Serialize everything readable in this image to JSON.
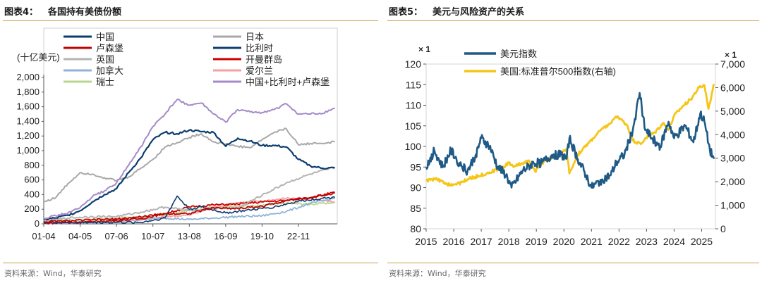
{
  "left": {
    "fig_num": "图表4：",
    "fig_title": "各国持有美债份额",
    "source": "资料来源：Wind，华泰研究"
  },
  "right": {
    "fig_num": "图表5：",
    "fig_title": "美元与风险资产的关系",
    "source": "资料来源：Wind，华泰研究"
  },
  "colors": {
    "rule": "#c9a24a",
    "china": "#0b3c6e",
    "japan": "#a8a8a8",
    "luxembourg": "#c00000",
    "belgium": "#0b3c6e",
    "uk": "#b4b4b4",
    "cayman": "#cc0000",
    "canada": "#8fb3d9",
    "ireland": "#f2a2a2",
    "switzerland": "#b8d58c",
    "combined": "#a48ac8",
    "dxy": "#1f5a86",
    "sp500": "#f5c518"
  },
  "chart_data": [
    {
      "type": "line",
      "title": "各国持有美债份额",
      "ylabel": "(十亿美元)",
      "ylim": [
        0,
        2000
      ],
      "yticks": [
        "0",
        "200",
        "400",
        "600",
        "800",
        "1,000",
        "1,200",
        "1,400",
        "1,600",
        "1,800",
        "2,000"
      ],
      "xticks": [
        "01-04",
        "04-05",
        "07-06",
        "10-07",
        "13-08",
        "16-09",
        "19-10",
        "22-11"
      ],
      "legend": "top-left, two columns",
      "series": [
        {
          "name": "中国",
          "key": "china",
          "values": [
            [
              2001,
              60
            ],
            [
              2002,
              80
            ],
            [
              2003,
              120
            ],
            [
              2004,
              180
            ],
            [
              2005,
              300
            ],
            [
              2006,
              400
            ],
            [
              2007,
              480
            ],
            [
              2008,
              700
            ],
            [
              2009,
              900
            ],
            [
              2010,
              1150
            ],
            [
              2011,
              1250
            ],
            [
              2012,
              1230
            ],
            [
              2013,
              1280
            ],
            [
              2014,
              1260
            ],
            [
              2015,
              1250
            ],
            [
              2016,
              1060
            ],
            [
              2017,
              1170
            ],
            [
              2018,
              1130
            ],
            [
              2019,
              1070
            ],
            [
              2020,
              1070
            ],
            [
              2021,
              1050
            ],
            [
              2022,
              880
            ],
            [
              2023,
              790
            ],
            [
              2024,
              760
            ],
            [
              2025,
              765
            ]
          ]
        },
        {
          "name": "日本",
          "key": "japan",
          "values": [
            [
              2001,
              300
            ],
            [
              2002,
              360
            ],
            [
              2003,
              550
            ],
            [
              2004,
              700
            ],
            [
              2005,
              680
            ],
            [
              2006,
              630
            ],
            [
              2007,
              590
            ],
            [
              2008,
              640
            ],
            [
              2009,
              760
            ],
            [
              2010,
              880
            ],
            [
              2011,
              1050
            ],
            [
              2012,
              1110
            ],
            [
              2013,
              1180
            ],
            [
              2014,
              1230
            ],
            [
              2015,
              1120
            ],
            [
              2016,
              1090
            ],
            [
              2017,
              1060
            ],
            [
              2018,
              1040
            ],
            [
              2019,
              1150
            ],
            [
              2020,
              1250
            ],
            [
              2021,
              1300
            ],
            [
              2022,
              1080
            ],
            [
              2023,
              1100
            ],
            [
              2024,
              1100
            ],
            [
              2025,
              1120
            ]
          ]
        },
        {
          "name": "卢森堡",
          "key": "luxembourg",
          "values": [
            [
              2001,
              30
            ],
            [
              2003,
              40
            ],
            [
              2005,
              55
            ],
            [
              2007,
              65
            ],
            [
              2009,
              95
            ],
            [
              2011,
              140
            ],
            [
              2013,
              140
            ],
            [
              2015,
              220
            ],
            [
              2017,
              210
            ],
            [
              2019,
              240
            ],
            [
              2021,
              320
            ],
            [
              2023,
              360
            ],
            [
              2025,
              420
            ]
          ]
        },
        {
          "name": "比利时",
          "key": "belgium",
          "values": [
            [
              2001,
              20
            ],
            [
              2003,
              20
            ],
            [
              2005,
              20
            ],
            [
              2007,
              20
            ],
            [
              2009,
              20
            ],
            [
              2011,
              80
            ],
            [
              2012,
              380
            ],
            [
              2013,
              200
            ],
            [
              2014,
              230
            ],
            [
              2016,
              150
            ],
            [
              2018,
              190
            ],
            [
              2020,
              230
            ],
            [
              2022,
              310
            ],
            [
              2024,
              350
            ],
            [
              2025,
              360
            ]
          ]
        },
        {
          "name": "英国",
          "key": "uk",
          "values": [
            [
              2001,
              40
            ],
            [
              2003,
              80
            ],
            [
              2005,
              100
            ],
            [
              2007,
              100
            ],
            [
              2009,
              160
            ],
            [
              2011,
              230
            ],
            [
              2013,
              180
            ],
            [
              2015,
              210
            ],
            [
              2017,
              220
            ],
            [
              2019,
              390
            ],
            [
              2021,
              560
            ],
            [
              2023,
              680
            ],
            [
              2025,
              770
            ]
          ]
        },
        {
          "name": "开曼群岛",
          "key": "cayman",
          "values": [
            [
              2001,
              10
            ],
            [
              2005,
              25
            ],
            [
              2009,
              70
            ],
            [
              2011,
              140
            ],
            [
              2013,
              230
            ],
            [
              2015,
              260
            ],
            [
              2017,
              270
            ],
            [
              2019,
              300
            ],
            [
              2021,
              320
            ],
            [
              2023,
              360
            ],
            [
              2025,
              430
            ]
          ]
        },
        {
          "name": "加拿大",
          "key": "canada",
          "values": [
            [
              2001,
              10
            ],
            [
              2005,
              20
            ],
            [
              2009,
              60
            ],
            [
              2011,
              80
            ],
            [
              2013,
              60
            ],
            [
              2015,
              80
            ],
            [
              2017,
              100
            ],
            [
              2019,
              110
            ],
            [
              2021,
              170
            ],
            [
              2023,
              280
            ],
            [
              2025,
              350
            ]
          ]
        },
        {
          "name": "爱尔兰",
          "key": "ireland",
          "values": [
            [
              2001,
              10
            ],
            [
              2005,
              30
            ],
            [
              2009,
              50
            ],
            [
              2011,
              100
            ],
            [
              2013,
              120
            ],
            [
              2015,
              230
            ],
            [
              2017,
              290
            ],
            [
              2019,
              310
            ],
            [
              2021,
              350
            ],
            [
              2023,
              340
            ],
            [
              2025,
              300
            ]
          ]
        },
        {
          "name": "瑞士",
          "key": "switzerland",
          "values": [
            [
              2001,
              40
            ],
            [
              2005,
              60
            ],
            [
              2009,
              90
            ],
            [
              2011,
              120
            ],
            [
              2013,
              180
            ],
            [
              2015,
              230
            ],
            [
              2017,
              240
            ],
            [
              2019,
              250
            ],
            [
              2021,
              280
            ],
            [
              2023,
              270
            ],
            [
              2025,
              290
            ]
          ]
        },
        {
          "name": "中国+比利时+卢森堡",
          "key": "combined",
          "values": [
            [
              2001,
              80
            ],
            [
              2002,
              110
            ],
            [
              2003,
              150
            ],
            [
              2004,
              220
            ],
            [
              2005,
              370
            ],
            [
              2006,
              450
            ],
            [
              2007,
              560
            ],
            [
              2008,
              800
            ],
            [
              2009,
              1050
            ],
            [
              2010,
              1330
            ],
            [
              2011,
              1500
            ],
            [
              2012,
              1700
            ],
            [
              2013,
              1620
            ],
            [
              2014,
              1650
            ],
            [
              2015,
              1500
            ],
            [
              2016,
              1390
            ],
            [
              2017,
              1560
            ],
            [
              2018,
              1530
            ],
            [
              2019,
              1520
            ],
            [
              2020,
              1560
            ],
            [
              2021,
              1640
            ],
            [
              2022,
              1500
            ],
            [
              2023,
              1500
            ],
            [
              2024,
              1510
            ],
            [
              2025,
              1580
            ]
          ]
        }
      ]
    },
    {
      "type": "line",
      "title": "美元与风险资产的关系",
      "axis_unit_left": "× 1",
      "axis_unit_right": "× 1",
      "ylim": [
        80,
        120
      ],
      "ylim_right": [
        0,
        7000
      ],
      "yticks": [
        "80",
        "85",
        "90",
        "95",
        "100",
        "105",
        "110",
        "115",
        "120"
      ],
      "yticks_right": [
        "0",
        "1,000",
        "2,000",
        "3,000",
        "4,000",
        "5,000",
        "6,000",
        "7,000"
      ],
      "xticks": [
        "2015",
        "2016",
        "2017",
        "2018",
        "2019",
        "2020",
        "2021",
        "2022",
        "2023",
        "2024",
        "2025"
      ],
      "legend": "top-left",
      "series": [
        {
          "name": "美元指数",
          "key": "dxy",
          "axis": "left",
          "values": [
            [
              2015,
              95
            ],
            [
              2015.3,
              99
            ],
            [
              2015.6,
              95
            ],
            [
              2015.9,
              99
            ],
            [
              2016.2,
              96
            ],
            [
              2016.5,
              94
            ],
            [
              2016.8,
              98
            ],
            [
              2017.0,
              102
            ],
            [
              2017.3,
              100
            ],
            [
              2017.6,
              95
            ],
            [
              2017.9,
              93
            ],
            [
              2018.1,
              90
            ],
            [
              2018.5,
              94
            ],
            [
              2018.9,
              96
            ],
            [
              2019.2,
              96
            ],
            [
              2019.6,
              98
            ],
            [
              2019.9,
              98
            ],
            [
              2020.1,
              97
            ],
            [
              2020.2,
              102
            ],
            [
              2020.5,
              97
            ],
            [
              2020.8,
              93
            ],
            [
              2021.0,
              90
            ],
            [
              2021.4,
              92
            ],
            [
              2021.7,
              93
            ],
            [
              2021.9,
              96
            ],
            [
              2022.2,
              98
            ],
            [
              2022.5,
              104
            ],
            [
              2022.75,
              113
            ],
            [
              2022.95,
              104
            ],
            [
              2023.2,
              102
            ],
            [
              2023.5,
              100
            ],
            [
              2023.8,
              106
            ],
            [
              2024.0,
              102
            ],
            [
              2024.4,
              105
            ],
            [
              2024.7,
              101
            ],
            [
              2024.95,
              108
            ],
            [
              2025.1,
              106
            ],
            [
              2025.3,
              99
            ],
            [
              2025.45,
              97
            ]
          ]
        },
        {
          "name": "美国:标准普尔500指数(右轴)",
          "key": "sp500",
          "axis": "right",
          "values": [
            [
              2015,
              2050
            ],
            [
              2015.4,
              2100
            ],
            [
              2015.7,
              1900
            ],
            [
              2016.1,
              1880
            ],
            [
              2016.5,
              2100
            ],
            [
              2016.9,
              2250
            ],
            [
              2017.3,
              2400
            ],
            [
              2017.7,
              2550
            ],
            [
              2018.0,
              2800
            ],
            [
              2018.2,
              2650
            ],
            [
              2018.7,
              2900
            ],
            [
              2018.95,
              2450
            ],
            [
              2019.3,
              2900
            ],
            [
              2019.8,
              3150
            ],
            [
              2020.1,
              3350
            ],
            [
              2020.2,
              2350
            ],
            [
              2020.5,
              3150
            ],
            [
              2020.9,
              3650
            ],
            [
              2021.3,
              4150
            ],
            [
              2021.7,
              4500
            ],
            [
              2021.95,
              4780
            ],
            [
              2022.3,
              4400
            ],
            [
              2022.5,
              3750
            ],
            [
              2022.8,
              3600
            ],
            [
              2022.95,
              3850
            ],
            [
              2023.3,
              4100
            ],
            [
              2023.6,
              4500
            ],
            [
              2023.8,
              4200
            ],
            [
              2024.0,
              4800
            ],
            [
              2024.3,
              5200
            ],
            [
              2024.6,
              5500
            ],
            [
              2024.9,
              6000
            ],
            [
              2025.1,
              6100
            ],
            [
              2025.25,
              5100
            ],
            [
              2025.4,
              5900
            ],
            [
              2025.45,
              6150
            ]
          ]
        }
      ]
    }
  ]
}
